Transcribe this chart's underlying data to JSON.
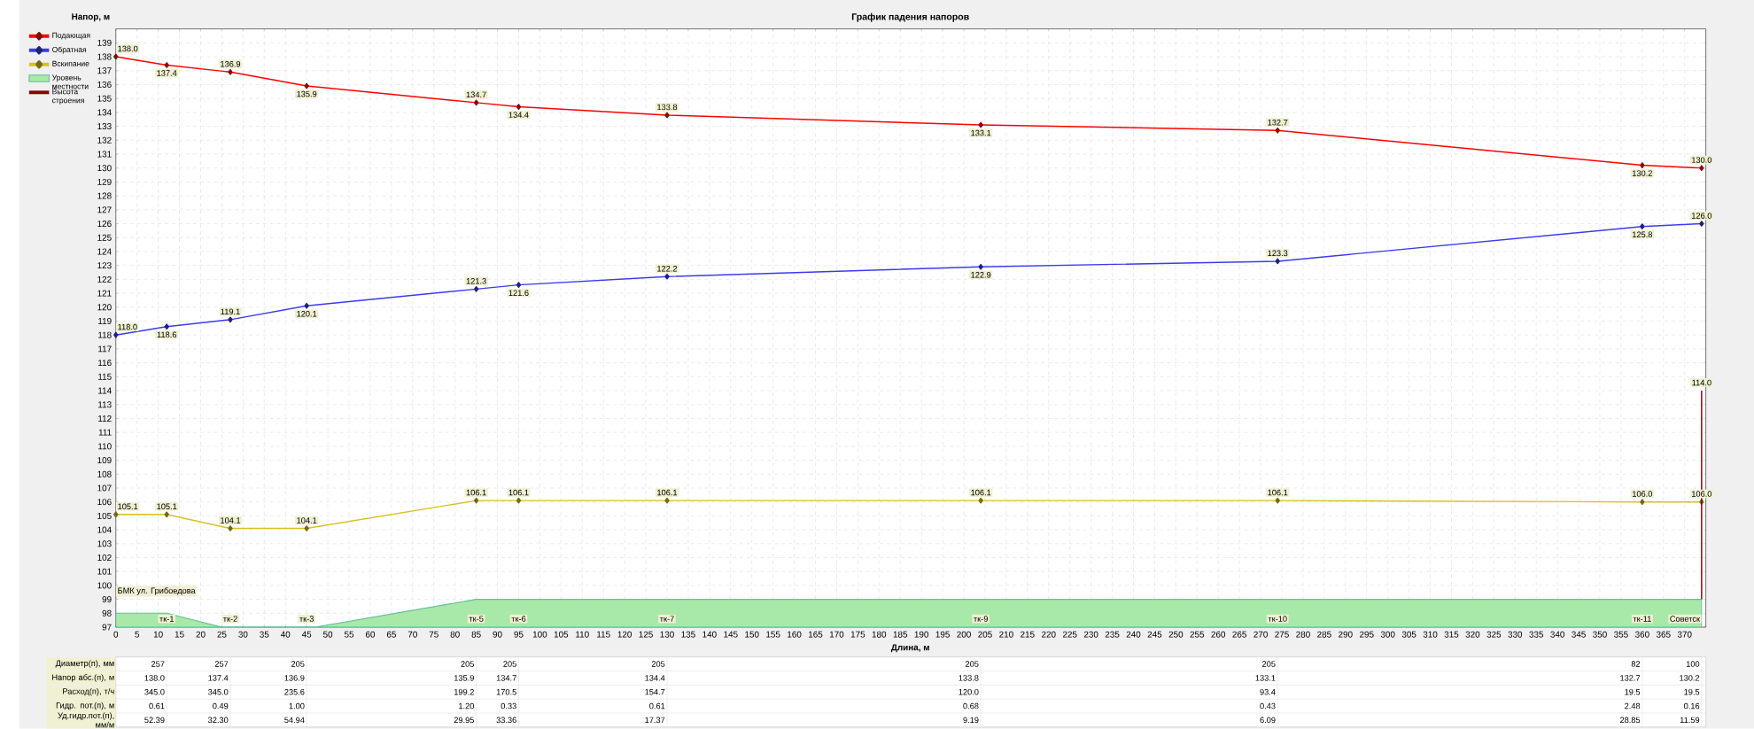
{
  "chart_data": [
    {
      "type": "line",
      "title": "График падения напоров",
      "xlabel": "Длина, м",
      "ylabel": "Напор, м",
      "x": [
        0,
        12,
        27,
        45,
        85,
        95,
        130,
        204,
        274,
        360,
        374
      ],
      "xlim": [
        0,
        375
      ],
      "ylim": [
        97,
        140
      ],
      "xticks": [
        0,
        5,
        10,
        15,
        20,
        25,
        30,
        35,
        40,
        45,
        50,
        55,
        60,
        65,
        70,
        75,
        80,
        85,
        90,
        95,
        100,
        105,
        110,
        115,
        120,
        125,
        130,
        135,
        140,
        145,
        150,
        155,
        160,
        165,
        170,
        175,
        180,
        185,
        190,
        195,
        200,
        205,
        210,
        215,
        220,
        225,
        230,
        235,
        240,
        245,
        250,
        255,
        260,
        265,
        270,
        275,
        280,
        285,
        290,
        295,
        300,
        305,
        310,
        315,
        320,
        325,
        330,
        335,
        340,
        345,
        350,
        355,
        360,
        365,
        370
      ],
      "yticks": [
        97,
        98,
        99,
        100,
        101,
        102,
        103,
        104,
        105,
        106,
        107,
        108,
        109,
        110,
        111,
        112,
        113,
        114,
        115,
        116,
        117,
        118,
        119,
        120,
        121,
        122,
        123,
        124,
        125,
        126,
        127,
        128,
        129,
        130,
        131,
        132,
        133,
        134,
        135,
        136,
        137,
        138,
        139
      ],
      "grid": true,
      "legend": "left",
      "marker": "diamond",
      "series": [
        {
          "name": "Подающая",
          "color": "#ff0000",
          "values": [
            138.0,
            137.4,
            136.9,
            135.9,
            134.7,
            134.4,
            133.8,
            133.1,
            132.7,
            130.2,
            130.0
          ],
          "value_labels": [
            "138.0",
            "137.4",
            "136.9",
            "135.9",
            "134.7",
            "134.4",
            "133.8",
            "133.1",
            "132.7",
            "130.2",
            "130.0"
          ]
        },
        {
          "name": "Обратная",
          "color": "#3a3af0",
          "values": [
            118.0,
            118.6,
            119.1,
            120.1,
            121.3,
            121.6,
            122.2,
            122.9,
            123.3,
            125.8,
            126.0
          ],
          "value_labels": [
            "118.0",
            "118.6",
            "119.1",
            "120.1",
            "121.3",
            "121.6",
            "122.2",
            "122.9",
            "123.3",
            "125.8",
            "126.0"
          ]
        },
        {
          "name": "Вскипание",
          "color": "#d4c21c",
          "values": [
            105.1,
            105.1,
            104.1,
            104.1,
            106.1,
            106.1,
            106.1,
            106.1,
            106.1,
            106.0,
            106.0
          ],
          "value_labels": [
            "105.1",
            "105.1",
            "104.1",
            "104.1",
            "106.1",
            "106.1",
            "106.1",
            "106.1",
            "106.1",
            "106.0",
            "106.0"
          ]
        },
        {
          "name": "Уровень местности",
          "type": "area",
          "color": "#a8e8a8",
          "marker": "none",
          "x": [
            0,
            12,
            25,
            47,
            85,
            374
          ],
          "values": [
            98,
            98,
            97,
            97,
            99,
            99
          ]
        },
        {
          "name": "Высота строения",
          "color": "#8b0000",
          "marker": "none",
          "x": [
            374,
            374
          ],
          "values": [
            99,
            114.0
          ],
          "value_labels": [
            null,
            "114.0"
          ]
        }
      ],
      "annotations": [
        "БМК ул. Грибоедова",
        {
          "text": "тк-1",
          "x": 12,
          "y": 97.6
        },
        {
          "text": "тк-2",
          "x": 27,
          "y": 97.6
        },
        {
          "text": "тк-3",
          "x": 45,
          "y": 97.6
        },
        {
          "text": "тк-5",
          "x": 85,
          "y": 97.6
        },
        {
          "text": "тк-6",
          "x": 95,
          "y": 97.6
        },
        {
          "text": "тк-7",
          "x": 130,
          "y": 97.6
        },
        {
          "text": "тк-9",
          "x": 204,
          "y": 97.6
        },
        {
          "text": "тк-10",
          "x": 274,
          "y": 97.6
        },
        {
          "text": "тк-11",
          "x": 360,
          "y": 97.6
        },
        {
          "text": "Советск",
          "x": 374,
          "y": 97.6
        }
      ]
    },
    {
      "type": "other",
      "annotations": [
        "Диаметр(п), мм",
        "257",
        "257",
        "205",
        "205",
        "205",
        "205",
        "205",
        "205",
        "82",
        "100",
        "Напор абс.(п), м",
        "138.0",
        "137.4",
        "136.9",
        "135.9",
        "134.7",
        "134.4",
        "133.8",
        "133.1",
        "132.7",
        "130.2",
        "Расход(п), т/ч",
        "345.0",
        "345.0",
        "235.6",
        "199.2",
        "170.5",
        "154.7",
        "120.0",
        "93.4",
        "19.5",
        "19.5",
        "Гидр. пот.(п), м",
        "0.61",
        "0.49",
        "1.00",
        "1.20",
        "0.33",
        "0.61",
        "0.68",
        "0.43",
        "2.48",
        "0.16",
        "Уд.гидр.пот.(п), мм/м",
        "52.39",
        "32.30",
        "54.94",
        "29.95",
        "33.36",
        "17.37",
        "9.19",
        "6.09",
        "28.85",
        "11.59"
      ]
    }
  ]
}
